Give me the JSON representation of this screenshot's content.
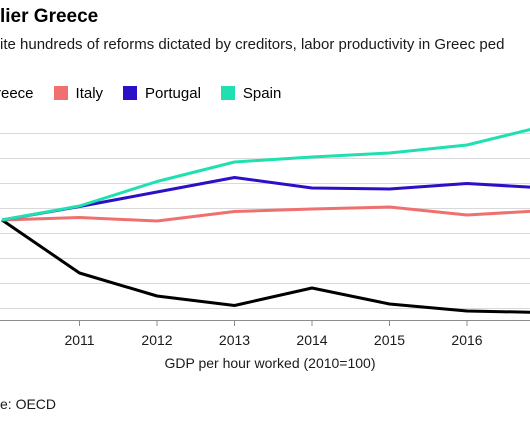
{
  "chart_data": {
    "type": "line",
    "title": "lier Greece",
    "subtitle": "ite hundreds of reforms dictated by creditors, labor productivity in Greec ped",
    "xlabel": "GDP per hour worked (2010=100)",
    "source": "e: OECD",
    "x": [
      "2010",
      "2011",
      "2012",
      "2013",
      "2014",
      "2015",
      "2016",
      "2017"
    ],
    "x_tick_labels": [
      "2011",
      "2012",
      "2013",
      "2014",
      "2015",
      "2016",
      "201"
    ],
    "series": [
      {
        "name": "reece",
        "color": "#000000",
        "values": [
          100,
          89.4,
          84.8,
          82.9,
          86.4,
          83.2,
          81.8,
          81.5
        ]
      },
      {
        "name": "Italy",
        "color": "#f07070",
        "values": [
          100,
          100.5,
          99.8,
          101.7,
          102.2,
          102.6,
          101.0,
          101.9
        ]
      },
      {
        "name": "Portugal",
        "color": "#2a10c8",
        "values": [
          100,
          102.7,
          105.6,
          108.5,
          106.4,
          106.2,
          107.3,
          106.4
        ]
      },
      {
        "name": "Spain",
        "color": "#20e0b0",
        "values": [
          100,
          102.8,
          107.7,
          111.6,
          112.6,
          113.4,
          115.0,
          118.8
        ]
      }
    ],
    "ylim": [
      80,
      120
    ],
    "y_gridlines": [
      82.5,
      87.5,
      92.5,
      97.5,
      102.5,
      107.5,
      112.5,
      117.5
    ],
    "grid": true,
    "legend_placement": "top-left"
  }
}
